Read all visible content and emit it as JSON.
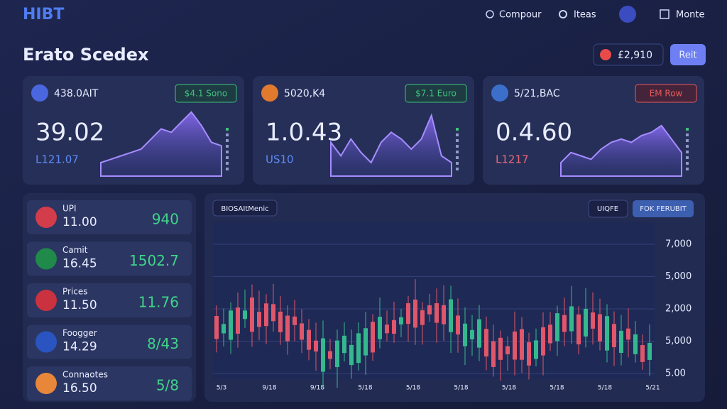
{
  "header": {
    "brand": "HIBT",
    "nav": [
      "Compour",
      "Iteas",
      "Monte"
    ]
  },
  "page": {
    "title": "Erato Scedex",
    "balance": "£2,910",
    "action": "Reit"
  },
  "cards": [
    {
      "label": "438.0AIT",
      "badge": "$4.1 Sono",
      "value": "39.02",
      "sub": "L121.07"
    },
    {
      "label": "5020,K4",
      "badge": "$7.1 Euro",
      "value": "1.0.43",
      "sub": "US10"
    },
    {
      "label": "5/21,BAC",
      "badge": "EM Row",
      "value": "0.4.60",
      "sub": "L1217"
    }
  ],
  "list": [
    {
      "name": "UPI",
      "price": "11.00",
      "change": "940"
    },
    {
      "name": "Camit",
      "price": "16.45",
      "change": "1502.7"
    },
    {
      "name": "Prices",
      "price": "11.50",
      "change": "11.76"
    },
    {
      "name": "Foogger",
      "price": "14.29",
      "change": "8/43"
    },
    {
      "name": "Connaotes",
      "price": "16.50",
      "change": "5/8"
    }
  ],
  "panel": {
    "tag": "BIOSAItMenic",
    "buttons": [
      "UIQFE",
      "FOK FERUBIT"
    ],
    "y_labels": [
      "7,000",
      "5,000",
      "2,000",
      "5,000",
      "5.00"
    ],
    "x_labels": [
      "5/3",
      "9/18",
      "9/18",
      "5/18",
      "5/18",
      "5/18",
      "5/18",
      "5/18",
      "5/18",
      "5/21"
    ]
  }
}
